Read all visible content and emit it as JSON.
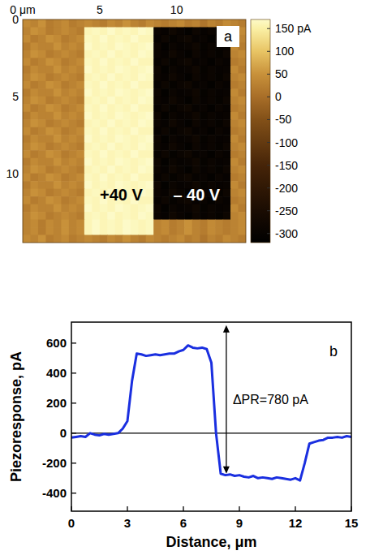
{
  "chart_data": [
    {
      "type": "heatmap",
      "panel": "a",
      "xlim": [
        0,
        14.5
      ],
      "ylim": [
        0,
        14.5
      ],
      "xticks": [
        {
          "value": 0,
          "label": "0 μm"
        },
        5,
        10
      ],
      "yticks": [
        0,
        5,
        10
      ],
      "color_range": [
        -320,
        170
      ],
      "color_ticks": [
        {
          "value": 150,
          "label": "150 pA"
        },
        100,
        50,
        0,
        -50,
        -100,
        -150,
        -200,
        -250,
        -300
      ],
      "annotations": [
        {
          "text": "+40 V",
          "x": 6.4,
          "y": 11.4
        },
        {
          "text": "– 40 V",
          "x": 11.3,
          "y": 11.4
        }
      ],
      "cells": [
        [
          40,
          30,
          50,
          20,
          30,
          40,
          20,
          30,
          40,
          30,
          20,
          40,
          30,
          50,
          30,
          20,
          40,
          30,
          20,
          30,
          40,
          20,
          30,
          10,
          30,
          20,
          40,
          30,
          20
        ],
        [
          30,
          50,
          40,
          20,
          30,
          40,
          30,
          20,
          160,
          165,
          160,
          170,
          160,
          165,
          160,
          170,
          165,
          -290,
          -300,
          -280,
          -295,
          -310,
          -285,
          -300,
          -290,
          -305,
          -285,
          30,
          40
        ],
        [
          40,
          20,
          30,
          50,
          40,
          20,
          30,
          40,
          165,
          160,
          170,
          160,
          165,
          160,
          170,
          160,
          160,
          -300,
          -285,
          -305,
          -290,
          -280,
          -300,
          -295,
          -310,
          -290,
          -300,
          20,
          30
        ],
        [
          20,
          40,
          30,
          30,
          50,
          30,
          40,
          30,
          170,
          160,
          165,
          160,
          170,
          165,
          160,
          165,
          170,
          -285,
          -310,
          -290,
          -300,
          -295,
          -280,
          -305,
          -290,
          -300,
          -295,
          40,
          20
        ],
        [
          30,
          50,
          40,
          20,
          30,
          40,
          30,
          20,
          160,
          165,
          160,
          170,
          160,
          165,
          160,
          170,
          165,
          -290,
          -300,
          -280,
          -295,
          -310,
          -285,
          -300,
          -290,
          -305,
          -285,
          30,
          40
        ],
        [
          40,
          20,
          30,
          50,
          40,
          20,
          30,
          40,
          165,
          160,
          170,
          160,
          165,
          160,
          170,
          160,
          160,
          -300,
          -285,
          -305,
          -290,
          -280,
          -300,
          -295,
          -310,
          -290,
          -300,
          20,
          30
        ],
        [
          20,
          40,
          30,
          30,
          50,
          30,
          40,
          30,
          170,
          160,
          165,
          160,
          170,
          165,
          160,
          165,
          170,
          -285,
          -310,
          -290,
          -300,
          -295,
          -280,
          -305,
          -290,
          -300,
          -295,
          40,
          20
        ],
        [
          30,
          50,
          40,
          20,
          30,
          40,
          30,
          20,
          160,
          165,
          160,
          170,
          160,
          165,
          160,
          170,
          165,
          -290,
          -300,
          -280,
          -295,
          -310,
          -285,
          -300,
          -290,
          -305,
          -285,
          30,
          40
        ],
        [
          40,
          20,
          30,
          50,
          40,
          20,
          30,
          40,
          165,
          160,
          170,
          160,
          165,
          160,
          170,
          160,
          160,
          -300,
          -285,
          -305,
          -290,
          -280,
          -300,
          -295,
          -310,
          -290,
          -300,
          20,
          30
        ],
        [
          20,
          40,
          30,
          30,
          50,
          30,
          40,
          30,
          170,
          160,
          165,
          160,
          170,
          165,
          160,
          165,
          170,
          -285,
          -310,
          -290,
          -300,
          -295,
          -280,
          -305,
          -290,
          -300,
          -295,
          40,
          20
        ],
        [
          30,
          50,
          40,
          20,
          30,
          40,
          30,
          20,
          160,
          165,
          160,
          170,
          160,
          165,
          160,
          170,
          165,
          -290,
          -300,
          -280,
          -295,
          -310,
          -285,
          -300,
          -290,
          -305,
          -285,
          30,
          40
        ],
        [
          40,
          20,
          30,
          50,
          40,
          20,
          30,
          40,
          165,
          160,
          170,
          160,
          165,
          160,
          170,
          160,
          160,
          -300,
          -285,
          -305,
          -290,
          -280,
          -300,
          -295,
          -310,
          -290,
          -300,
          20,
          30
        ],
        [
          20,
          40,
          30,
          30,
          50,
          30,
          40,
          30,
          170,
          160,
          165,
          160,
          170,
          165,
          160,
          165,
          170,
          -285,
          -310,
          -290,
          -300,
          -295,
          -280,
          -305,
          -290,
          -300,
          -295,
          40,
          20
        ],
        [
          30,
          50,
          40,
          20,
          30,
          40,
          30,
          20,
          160,
          165,
          160,
          170,
          160,
          165,
          160,
          170,
          165,
          -290,
          -300,
          -280,
          -295,
          -310,
          -285,
          -300,
          -290,
          -305,
          -285,
          30,
          40
        ],
        [
          40,
          20,
          30,
          50,
          40,
          20,
          30,
          40,
          165,
          160,
          170,
          160,
          165,
          160,
          170,
          160,
          160,
          -300,
          -285,
          -305,
          -290,
          -280,
          -300,
          -295,
          -310,
          -290,
          -300,
          20,
          30
        ],
        [
          20,
          40,
          30,
          30,
          50,
          30,
          40,
          30,
          170,
          160,
          165,
          160,
          170,
          165,
          160,
          165,
          170,
          -285,
          -310,
          -290,
          -300,
          -295,
          -280,
          -305,
          -290,
          -300,
          -295,
          40,
          20
        ],
        [
          30,
          50,
          40,
          20,
          30,
          40,
          30,
          20,
          160,
          165,
          160,
          170,
          160,
          165,
          160,
          170,
          165,
          -290,
          -300,
          -280,
          -295,
          -310,
          -285,
          -300,
          -290,
          -305,
          -285,
          30,
          40
        ],
        [
          40,
          20,
          30,
          50,
          40,
          20,
          30,
          40,
          165,
          160,
          170,
          160,
          165,
          160,
          170,
          160,
          160,
          -300,
          -285,
          -305,
          -290,
          -280,
          -300,
          -295,
          -310,
          -290,
          -300,
          20,
          30
        ],
        [
          20,
          40,
          30,
          30,
          50,
          30,
          40,
          30,
          170,
          160,
          165,
          160,
          170,
          165,
          160,
          165,
          170,
          -285,
          -310,
          -290,
          -300,
          -295,
          -280,
          -305,
          -290,
          -300,
          -295,
          40,
          20
        ],
        [
          30,
          50,
          40,
          20,
          30,
          40,
          30,
          20,
          160,
          165,
          160,
          170,
          160,
          165,
          160,
          170,
          165,
          -290,
          -300,
          -280,
          -295,
          -310,
          -285,
          -300,
          -290,
          -305,
          -285,
          30,
          40
        ],
        [
          40,
          20,
          30,
          50,
          40,
          20,
          30,
          40,
          165,
          160,
          170,
          160,
          165,
          160,
          170,
          160,
          160,
          -300,
          -285,
          -305,
          -290,
          -280,
          -300,
          -295,
          -310,
          -290,
          -300,
          20,
          30
        ],
        [
          20,
          40,
          30,
          30,
          50,
          30,
          40,
          30,
          170,
          160,
          165,
          160,
          170,
          165,
          160,
          165,
          170,
          -285,
          -310,
          -290,
          -300,
          -295,
          -280,
          -305,
          -290,
          -300,
          -295,
          40,
          20
        ],
        [
          30,
          50,
          40,
          20,
          30,
          40,
          30,
          20,
          160,
          165,
          160,
          170,
          160,
          165,
          160,
          170,
          165,
          -290,
          -300,
          -280,
          -295,
          -310,
          -285,
          -300,
          -290,
          -305,
          -285,
          30,
          40
        ],
        [
          40,
          20,
          30,
          50,
          40,
          20,
          30,
          40,
          165,
          160,
          170,
          160,
          165,
          160,
          170,
          160,
          160,
          -300,
          -285,
          -305,
          -290,
          -280,
          -300,
          -295,
          -310,
          -290,
          -300,
          20,
          30
        ],
        [
          20,
          40,
          30,
          30,
          50,
          30,
          40,
          30,
          170,
          160,
          165,
          160,
          170,
          165,
          160,
          165,
          170,
          -285,
          -310,
          -290,
          -300,
          -295,
          -280,
          -305,
          -290,
          -300,
          -295,
          40,
          20
        ],
        [
          30,
          50,
          40,
          20,
          30,
          40,
          30,
          20,
          160,
          165,
          160,
          170,
          160,
          165,
          160,
          170,
          165,
          -290,
          -300,
          -280,
          -295,
          -310,
          -285,
          -300,
          -290,
          -305,
          -285,
          30,
          40
        ],
        [
          30,
          40,
          20,
          40,
          30,
          50,
          30,
          40,
          160,
          170,
          160,
          165,
          160,
          170,
          165,
          160,
          165,
          30,
          40,
          20,
          30,
          50,
          30,
          20,
          40,
          30,
          20,
          30,
          40
        ],
        [
          30,
          40,
          20,
          40,
          30,
          50,
          30,
          40,
          160,
          170,
          160,
          165,
          160,
          170,
          165,
          160,
          165,
          30,
          40,
          20,
          30,
          50,
          30,
          20,
          40,
          30,
          20,
          30,
          40
        ],
        [
          40,
          30,
          50,
          20,
          30,
          40,
          20,
          30,
          40,
          30,
          20,
          40,
          30,
          50,
          30,
          20,
          40,
          30,
          20,
          30,
          40,
          20,
          30,
          10,
          30,
          20,
          40,
          30,
          20
        ]
      ]
    },
    {
      "type": "line",
      "panel": "b",
      "color": "#1a2fe0",
      "xlabel": "Distance, μm",
      "ylabel": "Piezoresponse, pA",
      "xlim": [
        0,
        15
      ],
      "ylim": [
        -520,
        740
      ],
      "xticks": [
        0,
        3,
        6,
        9,
        12,
        15
      ],
      "yticks": [
        -400,
        -200,
        0,
        200,
        400,
        600
      ],
      "hline": 0,
      "annotations": [
        {
          "text": "ΔPR=780 pA",
          "x": 8.3,
          "y_from": 720,
          "y_to": -270
        }
      ],
      "x": [
        0,
        0.25,
        0.5,
        0.75,
        1,
        1.25,
        1.5,
        1.75,
        2,
        2.25,
        2.5,
        2.75,
        3,
        3.25,
        3.5,
        3.75,
        4,
        4.25,
        4.5,
        4.75,
        5,
        5.25,
        5.5,
        5.75,
        6,
        6.25,
        6.5,
        6.75,
        7,
        7.25,
        7.5,
        7.75,
        8,
        8.25,
        8.5,
        8.75,
        9,
        9.25,
        9.5,
        9.75,
        10,
        10.25,
        10.5,
        10.75,
        11,
        11.25,
        11.5,
        11.75,
        12,
        12.25,
        12.5,
        12.75,
        13,
        13.25,
        13.5,
        13.75,
        14,
        14.25,
        14.5,
        14.75,
        15
      ],
      "values": [
        -30,
        -25,
        -20,
        -25,
        0,
        -10,
        -15,
        -5,
        -10,
        -5,
        0,
        30,
        80,
        350,
        530,
        525,
        515,
        520,
        525,
        520,
        525,
        530,
        530,
        545,
        555,
        585,
        570,
        565,
        570,
        560,
        470,
        0,
        -270,
        -280,
        -275,
        -285,
        -280,
        -290,
        -295,
        -285,
        -300,
        -295,
        -300,
        -305,
        -295,
        -300,
        -305,
        -310,
        -300,
        -315,
        -200,
        -70,
        -60,
        -50,
        -45,
        -30,
        -30,
        -25,
        -30,
        -20,
        -25
      ]
    }
  ]
}
